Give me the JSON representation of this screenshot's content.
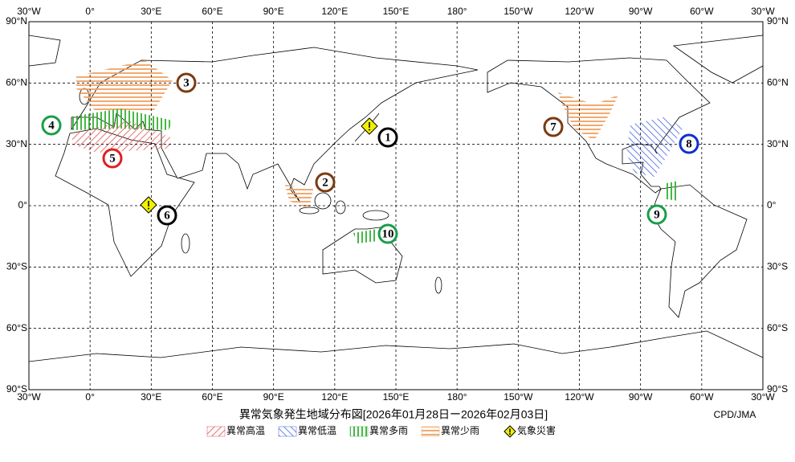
{
  "map": {
    "lon_labels": [
      "30°W",
      "0°",
      "30°E",
      "60°E",
      "90°E",
      "120°E",
      "150°E",
      "180°",
      "150°W",
      "120°W",
      "90°W",
      "60°W",
      "30°W"
    ],
    "lat_labels": [
      "90°N",
      "60°N",
      "30°N",
      "0°",
      "30°S",
      "60°S",
      "90°S"
    ],
    "markers": [
      {
        "label": "1",
        "color": "#000000"
      },
      {
        "label": "2",
        "color": "#7a3b12"
      },
      {
        "label": "3",
        "color": "#7a3b12"
      },
      {
        "label": "4",
        "color": "#1a9e4a"
      },
      {
        "label": "5",
        "color": "#e02020"
      },
      {
        "label": "6",
        "color": "#000000"
      },
      {
        "label": "7",
        "color": "#7a3b12"
      },
      {
        "label": "8",
        "color": "#1030d0"
      },
      {
        "label": "9",
        "color": "#1a9e4a"
      },
      {
        "label": "10",
        "color": "#1a9e4a"
      }
    ],
    "title": "異常気象発生地域分布図[2026年01月28日ー2026年02月03日]",
    "credit": "CPD/JMA",
    "legend": [
      {
        "label": "異常高温",
        "color": "#e05050"
      },
      {
        "label": "異常低温",
        "color": "#4060e0"
      },
      {
        "label": "異常多雨",
        "color": "#30b030"
      },
      {
        "label": "異常少雨",
        "color": "#f0a060"
      },
      {
        "label": "気象災害",
        "color": "#f0f000"
      }
    ]
  }
}
